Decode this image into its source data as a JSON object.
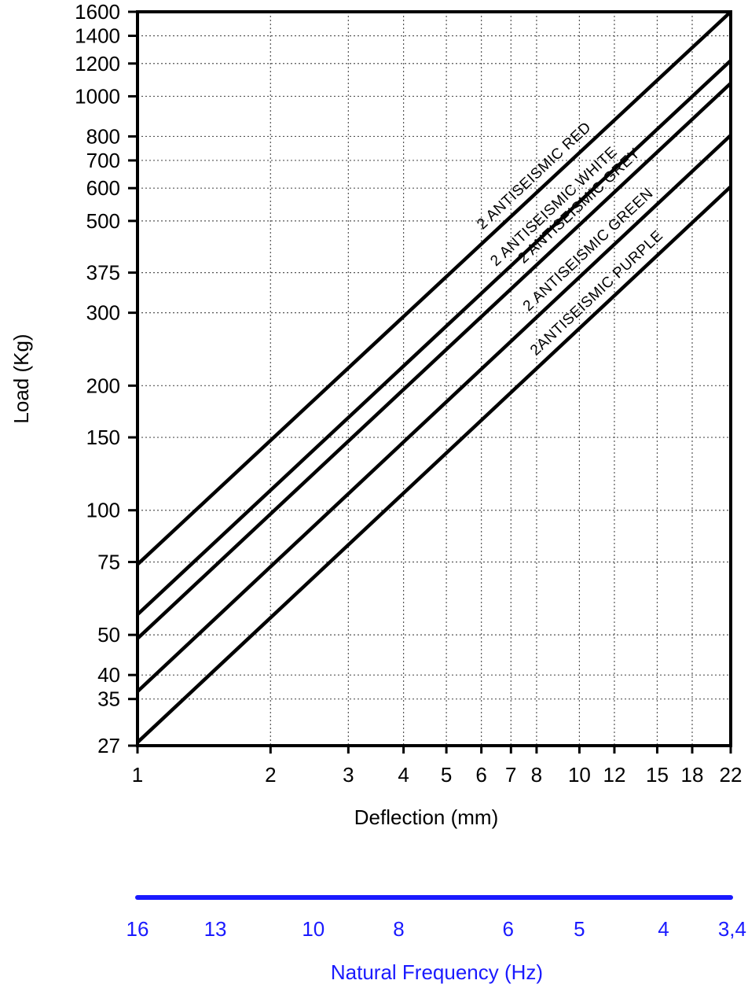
{
  "chart_data": {
    "type": "line",
    "xlabel": "Deflection (mm)",
    "ylabel": "Load (Kg)",
    "xscale": "log",
    "yscale": "log",
    "xlim": [
      1,
      22
    ],
    "ylim": [
      27,
      1600
    ],
    "grid": true,
    "x_ticks": [
      1,
      2,
      3,
      4,
      5,
      6,
      7,
      8,
      10,
      12,
      15,
      18,
      22
    ],
    "y_ticks": [
      27,
      35,
      40,
      50,
      75,
      100,
      150,
      200,
      300,
      375,
      500,
      600,
      700,
      800,
      1000,
      1200,
      1400,
      1600
    ],
    "series": [
      {
        "name": "2 ANTISEISMIC RED",
        "x": [
          1,
          22
        ],
        "y": [
          74,
          1600
        ]
      },
      {
        "name": "2 ANTISEISMIC WHITE",
        "x": [
          1,
          22
        ],
        "y": [
          56,
          1220
        ]
      },
      {
        "name": "2 ANTISEISMIC GREY",
        "x": [
          1,
          22
        ],
        "y": [
          49,
          1075
        ]
      },
      {
        "name": "2 ANTISEISMIC GREEN",
        "x": [
          1,
          22
        ],
        "y": [
          36.5,
          805
        ]
      },
      {
        "name": "2ANTISEISMIC PURPLE",
        "x": [
          1,
          22
        ],
        "y": [
          27.5,
          605
        ]
      }
    ],
    "secondary_axis": {
      "label": "Natural Frequency (Hz)",
      "ticks": [
        {
          "label": "16",
          "deflection": 1
        },
        {
          "label": "13",
          "deflection": 1.5
        },
        {
          "label": "10",
          "deflection": 2.5
        },
        {
          "label": "8",
          "deflection": 3.9
        },
        {
          "label": "6",
          "deflection": 6.9
        },
        {
          "label": "5",
          "deflection": 10
        },
        {
          "label": "4",
          "deflection": 15.5
        },
        {
          "label": "3,4",
          "deflection": 22
        }
      ],
      "color": "#1a1aff"
    },
    "line_color": "#000000",
    "grid_color": "#555555"
  }
}
